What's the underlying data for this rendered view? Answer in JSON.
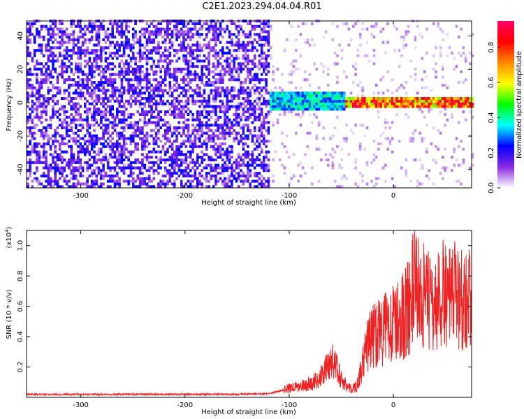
{
  "page": {
    "title": "C2E1.2023.294.04.04.R01"
  },
  "chart_data": [
    {
      "type": "heatmap",
      "xlabel": "Height of straight line (km)",
      "ylabel": "Frequency (Hz)",
      "xlim": [
        -352,
        75
      ],
      "ylim": [
        -51,
        49
      ],
      "x_ticks": [
        -300,
        -200,
        -100,
        0
      ],
      "y_ticks": [
        -40,
        -20,
        0,
        20,
        40
      ],
      "grid": false,
      "colorbar": {
        "label": "Normalized spectral amplitude",
        "range": [
          0,
          0.95
        ],
        "ticks": [
          "0.0",
          "0.2",
          "0.4",
          "0.6",
          "0.8"
        ],
        "colormap": [
          "#ffffff",
          "#8a2be2",
          "#0000ff",
          "#00ffff",
          "#00ff00",
          "#ffff00",
          "#ff8800",
          "#ff0000",
          "#ff0066"
        ]
      },
      "regions": [
        {
          "x_range": [
            -352,
            -120
          ],
          "description": "broadband noise",
          "level": 0.15
        },
        {
          "x_range": [
            -120,
            -48
          ],
          "center_hz": 0,
          "half_width_hz": 6,
          "level": 0.4
        },
        {
          "x_range": [
            -48,
            75
          ],
          "center_hz": 0,
          "half_width_hz": 3,
          "level": 0.85
        }
      ]
    },
    {
      "type": "line",
      "xlabel": "Height of straight line (km)",
      "ylabel": "SNR (10 * v/v)",
      "multiplier_label": "(x10",
      "multiplier_exp": "4",
      "xlim": [
        -352,
        75
      ],
      "ylim": [
        0,
        1.1
      ],
      "x_ticks": [
        -300,
        -200,
        -100,
        0
      ],
      "y_ticks": [
        0.2,
        0.4,
        0.6,
        0.8,
        1.0
      ],
      "y_tick_labels": [
        "0.2",
        "0.4",
        "0.6",
        "0.8",
        "1.0"
      ],
      "series": [
        {
          "color": "#ee2222",
          "x": [
            -352,
            -300,
            -250,
            -200,
            -150,
            -120,
            -110,
            -100,
            -90,
            -80,
            -70,
            -65,
            -60,
            -55,
            -50,
            -45,
            -40,
            -35,
            -30,
            -25,
            -20,
            -15,
            -10,
            -5,
            0,
            5,
            10,
            15,
            20,
            25,
            30,
            35,
            40,
            45,
            50,
            55,
            60,
            65,
            70,
            75
          ],
          "values": [
            0.02,
            0.02,
            0.02,
            0.02,
            0.02,
            0.025,
            0.04,
            0.06,
            0.07,
            0.09,
            0.13,
            0.18,
            0.25,
            0.2,
            0.12,
            0.08,
            0.05,
            0.08,
            0.2,
            0.35,
            0.4,
            0.45,
            0.42,
            0.5,
            0.48,
            0.5,
            0.55,
            0.6,
            0.75,
            0.7,
            0.65,
            0.62,
            0.6,
            0.65,
            0.7,
            0.62,
            0.7,
            0.65,
            0.68,
            0.62
          ]
        }
      ]
    }
  ]
}
